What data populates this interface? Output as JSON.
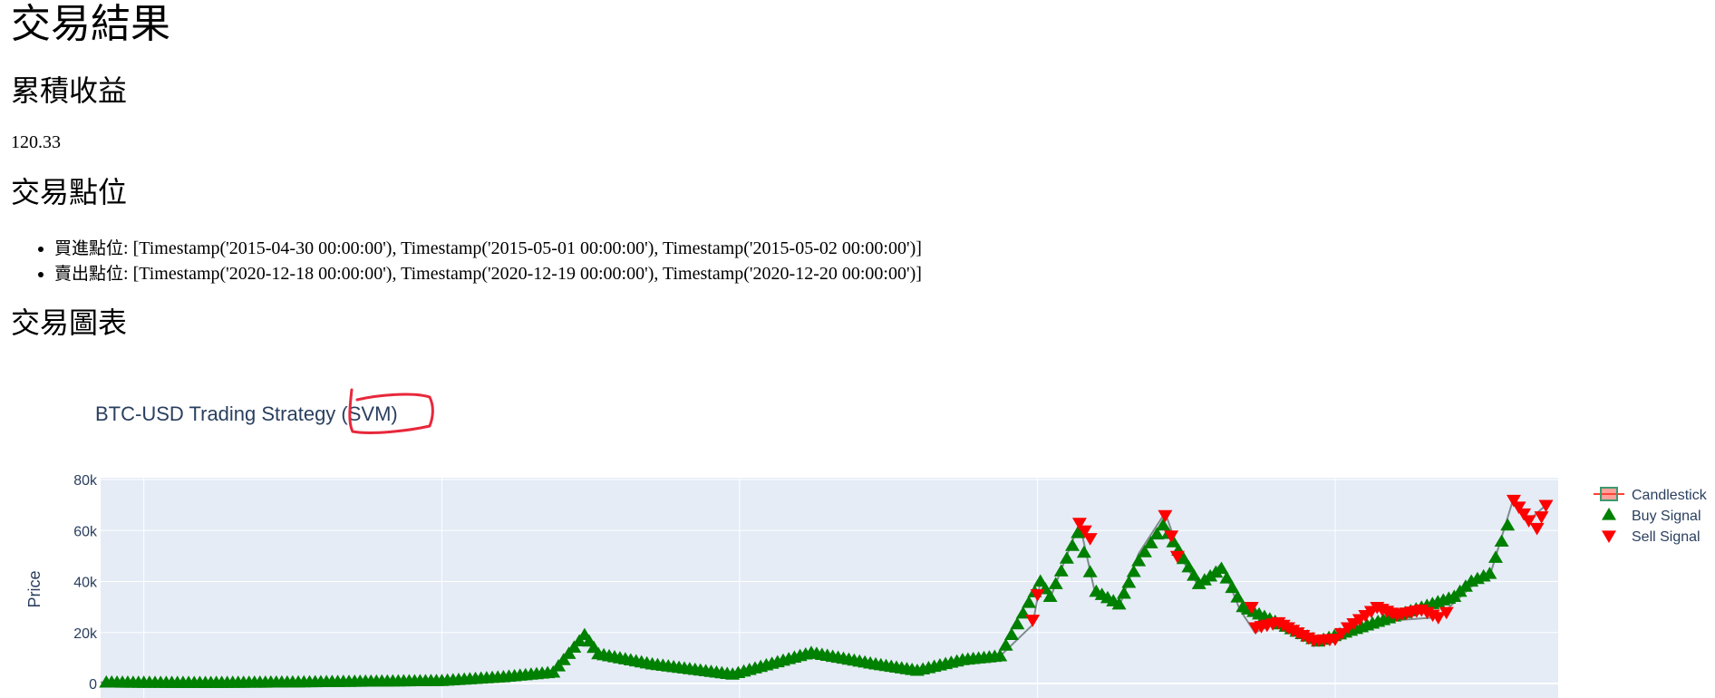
{
  "page": {
    "title": "交易結果",
    "returns_heading": "累積收益",
    "returns_value": "120.33",
    "points_heading": "交易點位",
    "buy_label": "買進點位",
    "buy_value": ": [Timestamp('2015-04-30 00:00:00'), Timestamp('2015-05-01 00:00:00'), Timestamp('2015-05-02 00:00:00')]",
    "sell_label": "賣出點位",
    "sell_value": ": [Timestamp('2020-12-18 00:00:00'), Timestamp('2020-12-19 00:00:00'), Timestamp('2020-12-20 00:00:00')]",
    "chart_heading": "交易圖表"
  },
  "chart_data": {
    "type": "line",
    "title": "BTC-USD Trading Strategy (SVM)",
    "xlabel": "",
    "ylabel": "Price",
    "ylim": [
      -4000,
      80000
    ],
    "yticks": [
      0,
      20000,
      40000,
      60000,
      80000
    ],
    "ytick_labels": [
      "0",
      "20k",
      "40k",
      "60k",
      "80k"
    ],
    "xlim": [
      "2014-09-17",
      "2024-07-01"
    ],
    "grid": true,
    "legend": "right",
    "colors": {
      "plot_bg": "#e5ecf6",
      "grid": "#ffffff",
      "candle_up": "#3d9970",
      "candle_down": "#ff4136",
      "buy": "#008000",
      "sell": "#ff0000",
      "text": "#2a3f5f",
      "annotation": "#e8283b"
    },
    "series": [
      {
        "name": "Candlestick",
        "x": [
          "2014-09-17",
          "2015-01-01",
          "2015-06-01",
          "2016-01-01",
          "2016-06-01",
          "2017-01-01",
          "2017-06-01",
          "2017-10-01",
          "2017-12-17",
          "2018-01-20",
          "2018-06-01",
          "2018-12-15",
          "2019-06-26",
          "2019-12-01",
          "2020-03-12",
          "2020-07-01",
          "2020-10-01",
          "2020-12-20",
          "2021-01-08",
          "2021-02-01",
          "2021-04-14",
          "2021-05-20",
          "2021-07-20",
          "2021-09-06",
          "2021-11-10",
          "2021-12-20",
          "2022-02-01",
          "2022-03-28",
          "2022-05-12",
          "2022-06-18",
          "2022-08-15",
          "2022-11-09",
          "2023-01-01",
          "2023-04-14",
          "2023-06-15",
          "2023-09-11",
          "2023-12-01",
          "2024-01-15",
          "2024-03-14",
          "2024-04-20",
          "2024-06-01"
        ],
        "close": [
          450,
          300,
          230,
          430,
          700,
          1000,
          2500,
          4300,
          19000,
          11500,
          7500,
          3500,
          12000,
          7500,
          5000,
          9200,
          10700,
          23000,
          40000,
          33500,
          63000,
          37000,
          30000,
          51000,
          67000,
          49000,
          38000,
          47000,
          29000,
          20000,
          24000,
          16500,
          16500,
          30000,
          25000,
          26000,
          38000,
          42000,
          73000,
          64000,
          70000
        ]
      },
      {
        "name": "Buy Signal",
        "x": [
          "2014-10-01",
          "2015-01-01",
          "2015-06-01",
          "2016-01-01",
          "2016-06-01",
          "2017-01-01",
          "2017-06-01",
          "2017-10-01",
          "2017-12-17",
          "2018-01-20",
          "2018-06-01",
          "2018-12-15",
          "2019-06-26",
          "2019-12-01",
          "2020-03-12",
          "2020-07-01",
          "2020-10-01",
          "2021-01-08",
          "2021-02-01",
          "2021-04-10",
          "2021-05-25",
          "2021-07-20",
          "2021-09-06",
          "2021-11-05",
          "2022-02-01",
          "2022-03-28",
          "2022-05-20",
          "2022-11-20",
          "2023-10-20",
          "2023-12-01",
          "2024-01-15",
          "2024-02-28"
        ],
        "y": [
          400,
          300,
          230,
          430,
          700,
          1000,
          2500,
          4300,
          19000,
          11500,
          7500,
          3500,
          12000,
          7500,
          5000,
          9200,
          10700,
          40000,
          34000,
          59000,
          36000,
          31000,
          48000,
          62000,
          39000,
          45000,
          30000,
          16500,
          34000,
          40000,
          43000,
          62000
        ]
      },
      {
        "name": "Sell Signal",
        "x": [
          "2020-12-20",
          "2021-01-01",
          "2021-04-14",
          "2021-05-10",
          "2021-11-10",
          "2021-12-10",
          "2022-06-10",
          "2022-06-20",
          "2022-08-15",
          "2022-10-01",
          "2022-11-09",
          "2023-01-01",
          "2023-02-01",
          "2023-04-14",
          "2023-06-01",
          "2023-08-01",
          "2023-09-11",
          "2023-10-01",
          "2024-03-14",
          "2024-04-20",
          "2024-05-10",
          "2024-06-01"
        ],
        "y": [
          25000,
          35000,
          63000,
          57000,
          66000,
          50000,
          30000,
          22000,
          24000,
          20000,
          17000,
          17500,
          22000,
          30000,
          27000,
          29000,
          26000,
          28000,
          72000,
          64000,
          61000,
          70000
        ]
      }
    ],
    "annotations": [
      "(SVM)"
    ]
  }
}
